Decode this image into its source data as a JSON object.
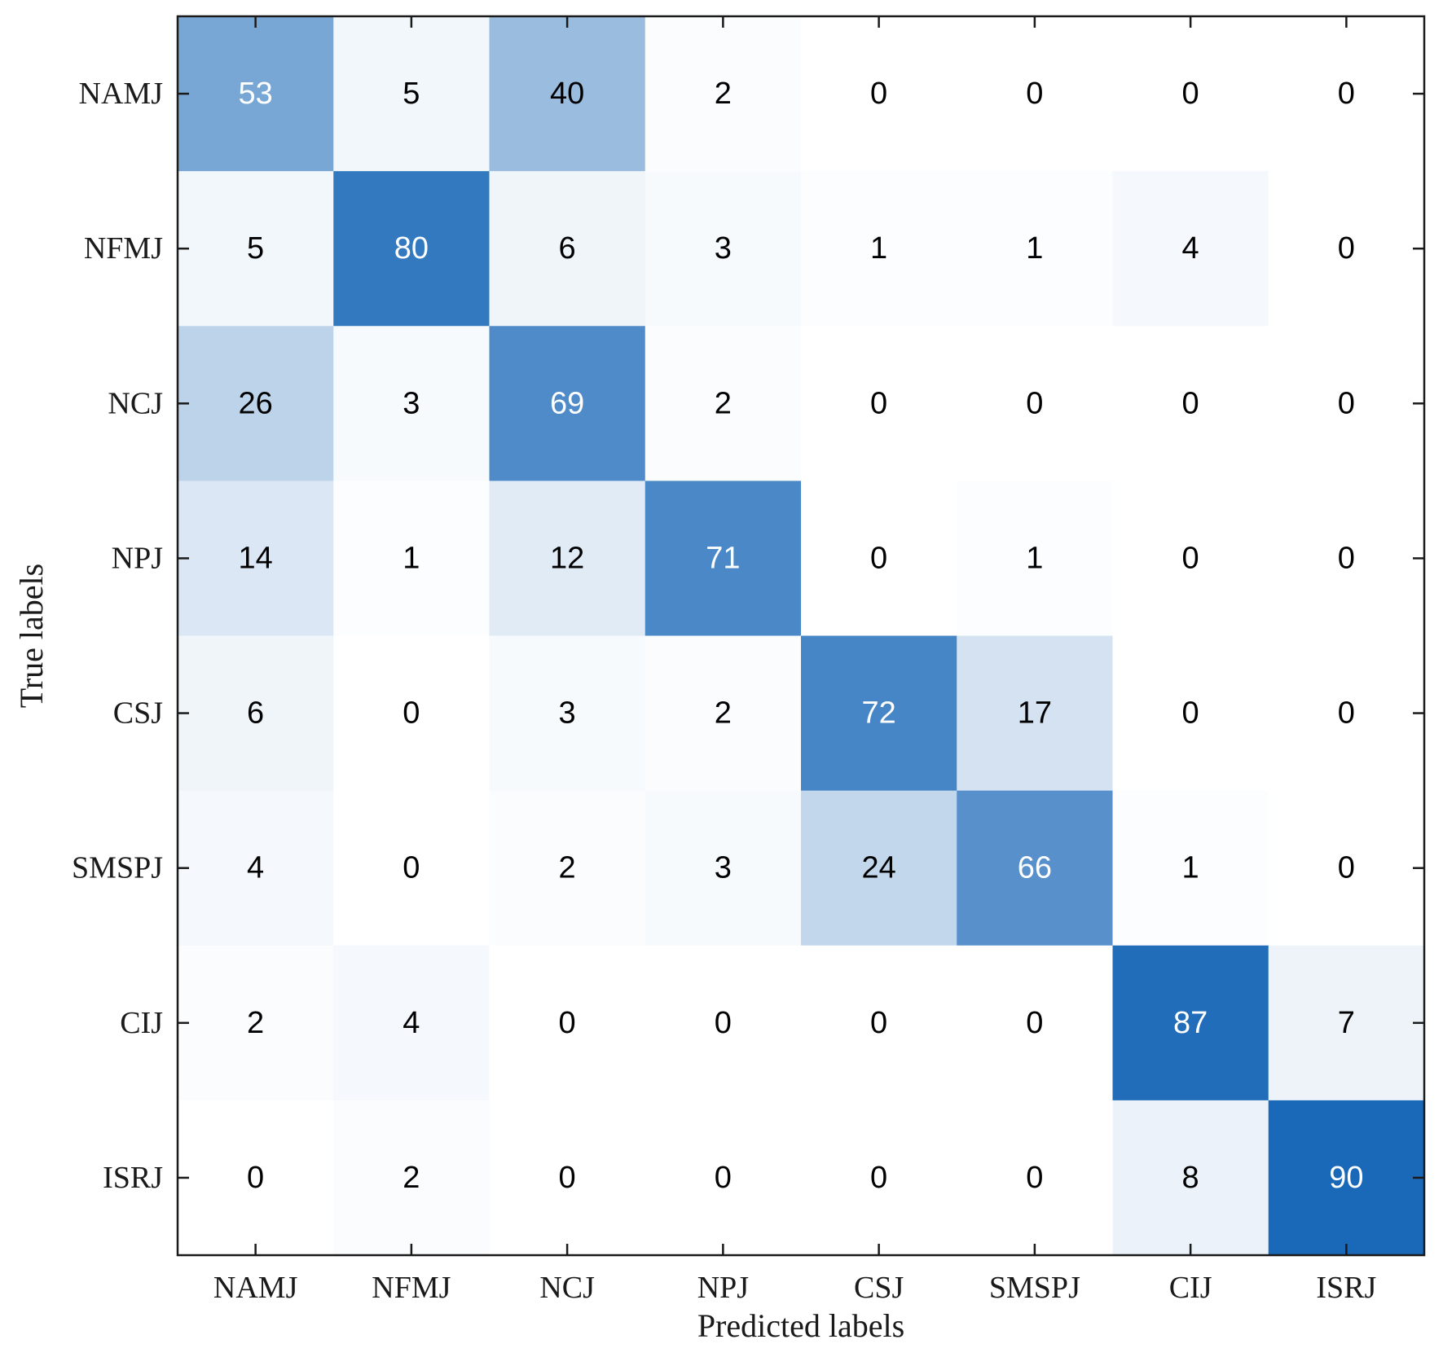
{
  "chart_data": {
    "type": "heatmap",
    "title": "",
    "xlabel": "Predicted labels",
    "ylabel": "True labels",
    "x_categories": [
      "NAMJ",
      "NFMJ",
      "NCJ",
      "NPJ",
      "CSJ",
      "SMSPJ",
      "CIJ",
      "ISRJ"
    ],
    "y_categories": [
      "NAMJ",
      "NFMJ",
      "NCJ",
      "NPJ",
      "CSJ",
      "SMSPJ",
      "CIJ",
      "ISRJ"
    ],
    "values": [
      [
        53,
        5,
        40,
        2,
        0,
        0,
        0,
        0
      ],
      [
        5,
        80,
        6,
        3,
        1,
        1,
        4,
        0
      ],
      [
        26,
        3,
        69,
        2,
        0,
        0,
        0,
        0
      ],
      [
        14,
        1,
        12,
        71,
        0,
        1,
        0,
        0
      ],
      [
        6,
        0,
        3,
        2,
        72,
        17,
        0,
        0
      ],
      [
        4,
        0,
        2,
        3,
        24,
        66,
        1,
        0
      ],
      [
        2,
        4,
        0,
        0,
        0,
        0,
        87,
        7
      ],
      [
        0,
        2,
        0,
        0,
        0,
        0,
        8,
        90
      ]
    ],
    "value_range": [
      0,
      100
    ],
    "colormap": {
      "low": "#ffffff",
      "high": "#0057b0"
    },
    "text_color_dark": "#000000",
    "text_color_light": "#ffffff",
    "grid": false
  }
}
